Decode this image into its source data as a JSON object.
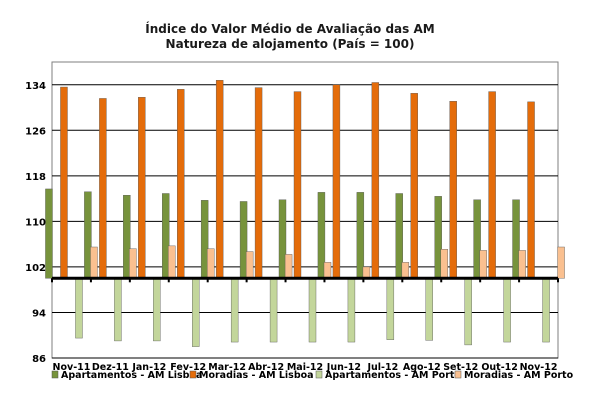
{
  "chart_data": {
    "type": "bar",
    "title": "Índice do Valor Médio de Avaliação das AM",
    "subtitle": "Natureza de alojamento (País = 100)",
    "categories": [
      "Nov-11",
      "Dez-11",
      "Jan-12",
      "Fev-12",
      "Mar-12",
      "Abr-12",
      "Mai-12",
      "Jun-12",
      "Jul-12",
      "Ago-12",
      "Set-12",
      "Out-12",
      "Nov-12"
    ],
    "series": [
      {
        "name": "Apartamentos - AM Lisboa",
        "color": "#77933c",
        "values": [
          115.7,
          115.2,
          114.6,
          114.9,
          113.7,
          113.5,
          113.8,
          115.1,
          115.1,
          114.9,
          114.4,
          113.8,
          113.8
        ]
      },
      {
        "name": "Moradias - AM Lisboa",
        "color": "#e46c0a",
        "values": [
          133.6,
          131.6,
          131.8,
          133.2,
          134.8,
          133.5,
          132.8,
          134.0,
          134.4,
          132.5,
          131.1,
          132.8,
          131.0
        ]
      },
      {
        "name": "Apartamentos - AM Porto",
        "color": "#c3d69b",
        "values": [
          89.5,
          89.0,
          89.0,
          88.0,
          88.8,
          88.8,
          88.8,
          88.8,
          89.2,
          89.1,
          88.3,
          88.8,
          88.8
        ]
      },
      {
        "name": "Moradias - AM Porto",
        "color": "#fac090",
        "values": [
          105.5,
          105.2,
          105.7,
          105.2,
          104.7,
          104.2,
          102.8,
          102.0,
          102.8,
          105.1,
          104.9,
          104.9,
          105.5
        ]
      }
    ],
    "baseline": 100,
    "ylim": [
      86,
      138
    ],
    "yticks": [
      "86",
      "94",
      "102",
      "110",
      "118",
      "126",
      "134"
    ],
    "grid": true,
    "legend_position": "bottom"
  }
}
